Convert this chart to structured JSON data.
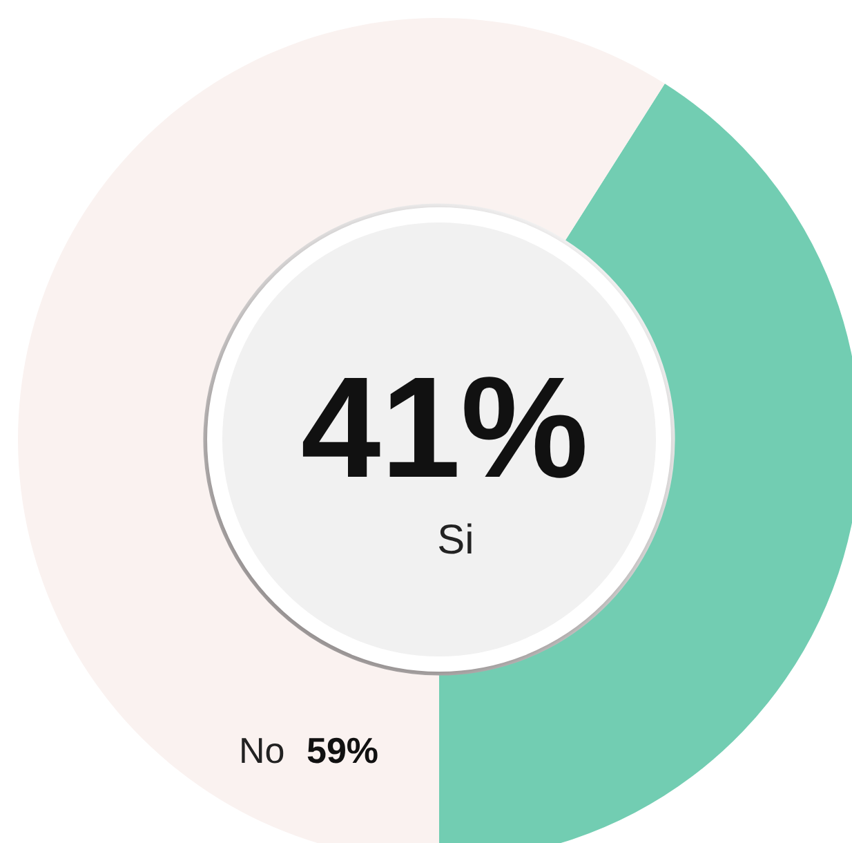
{
  "chart_data": {
    "type": "donut",
    "categories": [
      "Si",
      "No"
    ],
    "values": [
      41,
      59
    ],
    "colors": [
      "#72cdb2",
      "#faf2f0"
    ],
    "value_labels": [
      "41%",
      "59%"
    ],
    "legend": false
  }
}
